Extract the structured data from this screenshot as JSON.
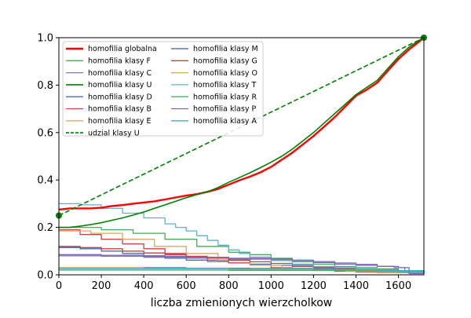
{
  "chart_data": {
    "type": "line",
    "title": "",
    "xlabel": "liczba zmienionych wierzcholkow",
    "ylabel": "",
    "xlim": [
      0,
      1720
    ],
    "ylim": [
      0.0,
      1.0
    ],
    "xticks": [
      "0",
      "200",
      "400",
      "600",
      "800",
      "1000",
      "1200",
      "1400",
      "1600"
    ],
    "yticks": [
      "0.0",
      "0.2",
      "0.4",
      "0.6",
      "0.8",
      "1.0"
    ],
    "grid": false,
    "legend_position": "top-left",
    "series": [
      {
        "name": "homofilia globalna",
        "color": "#ff0000",
        "style": "solid",
        "width": 2.4,
        "step": false,
        "points": [
          [
            0,
            0.275
          ],
          [
            50,
            0.28
          ],
          [
            100,
            0.28
          ],
          [
            150,
            0.28
          ],
          [
            200,
            0.283
          ],
          [
            250,
            0.29
          ],
          [
            300,
            0.294
          ],
          [
            350,
            0.3
          ],
          [
            400,
            0.305
          ],
          [
            450,
            0.31
          ],
          [
            500,
            0.318
          ],
          [
            550,
            0.326
          ],
          [
            600,
            0.334
          ],
          [
            650,
            0.34
          ],
          [
            700,
            0.35
          ],
          [
            750,
            0.362
          ],
          [
            800,
            0.38
          ],
          [
            850,
            0.398
          ],
          [
            900,
            0.414
          ],
          [
            950,
            0.432
          ],
          [
            1000,
            0.455
          ],
          [
            1050,
            0.485
          ],
          [
            1100,
            0.515
          ],
          [
            1150,
            0.55
          ],
          [
            1200,
            0.585
          ],
          [
            1250,
            0.625
          ],
          [
            1300,
            0.665
          ],
          [
            1350,
            0.71
          ],
          [
            1400,
            0.755
          ],
          [
            1450,
            0.78
          ],
          [
            1500,
            0.81
          ],
          [
            1550,
            0.86
          ],
          [
            1600,
            0.91
          ],
          [
            1650,
            0.95
          ],
          [
            1700,
            0.985
          ],
          [
            1720,
            1.0
          ]
        ]
      },
      {
        "name": "homofilia klasy F",
        "color": "#4aaa55",
        "style": "solid",
        "width": 1.3,
        "step": true,
        "points": [
          [
            0,
            0.2
          ],
          [
            100,
            0.2
          ],
          [
            200,
            0.19
          ],
          [
            350,
            0.175
          ],
          [
            500,
            0.15
          ],
          [
            650,
            0.12
          ],
          [
            800,
            0.095
          ],
          [
            900,
            0.085
          ],
          [
            1000,
            0.07
          ],
          [
            1100,
            0.055
          ],
          [
            1200,
            0.045
          ],
          [
            1300,
            0.035
          ],
          [
            1400,
            0.03
          ],
          [
            1500,
            0.025
          ],
          [
            1600,
            0.015
          ],
          [
            1720,
            0.01
          ]
        ]
      },
      {
        "name": "homofilia klasy C",
        "color": "#8477bd",
        "style": "solid",
        "width": 1.3,
        "step": true,
        "points": [
          [
            0,
            0.08
          ],
          [
            200,
            0.078
          ],
          [
            400,
            0.074
          ],
          [
            600,
            0.07
          ],
          [
            800,
            0.066
          ],
          [
            1000,
            0.062
          ],
          [
            1200,
            0.056
          ],
          [
            1300,
            0.05
          ],
          [
            1400,
            0.044
          ],
          [
            1500,
            0.036
          ],
          [
            1580,
            0.03
          ],
          [
            1630,
            0.01
          ],
          [
            1720,
            0.008
          ]
        ]
      },
      {
        "name": "homofilia klasy U",
        "color": "#008000",
        "style": "solid",
        "width": 1.6,
        "step": false,
        "points": [
          [
            0,
            0.2
          ],
          [
            50,
            0.2
          ],
          [
            100,
            0.205
          ],
          [
            150,
            0.212
          ],
          [
            200,
            0.22
          ],
          [
            250,
            0.23
          ],
          [
            300,
            0.24
          ],
          [
            350,
            0.252
          ],
          [
            400,
            0.265
          ],
          [
            450,
            0.28
          ],
          [
            500,
            0.295
          ],
          [
            550,
            0.31
          ],
          [
            600,
            0.325
          ],
          [
            650,
            0.338
          ],
          [
            700,
            0.35
          ],
          [
            750,
            0.368
          ],
          [
            800,
            0.39
          ],
          [
            850,
            0.41
          ],
          [
            900,
            0.43
          ],
          [
            950,
            0.452
          ],
          [
            1000,
            0.475
          ],
          [
            1050,
            0.5
          ],
          [
            1100,
            0.53
          ],
          [
            1150,
            0.565
          ],
          [
            1200,
            0.6
          ],
          [
            1250,
            0.64
          ],
          [
            1300,
            0.68
          ],
          [
            1350,
            0.72
          ],
          [
            1400,
            0.76
          ],
          [
            1450,
            0.79
          ],
          [
            1500,
            0.82
          ],
          [
            1550,
            0.87
          ],
          [
            1600,
            0.92
          ],
          [
            1650,
            0.96
          ],
          [
            1700,
            0.99
          ],
          [
            1720,
            1.0
          ]
        ]
      },
      {
        "name": "homofilia klasy D",
        "color": "#4a6fb0",
        "style": "solid",
        "width": 1.3,
        "step": true,
        "points": [
          [
            0,
            0.115
          ],
          [
            100,
            0.11
          ],
          [
            200,
            0.1
          ],
          [
            300,
            0.09
          ],
          [
            400,
            0.08
          ],
          [
            500,
            0.07
          ],
          [
            600,
            0.062
          ],
          [
            700,
            0.056
          ],
          [
            800,
            0.05
          ],
          [
            900,
            0.045
          ],
          [
            1000,
            0.04
          ],
          [
            1100,
            0.035
          ],
          [
            1200,
            0.03
          ],
          [
            1300,
            0.026
          ],
          [
            1400,
            0.022
          ],
          [
            1500,
            0.016
          ],
          [
            1600,
            0.012
          ],
          [
            1720,
            0.01
          ]
        ]
      },
      {
        "name": "homofilia klasy B",
        "color": "#cc4444",
        "style": "solid",
        "width": 1.3,
        "step": true,
        "points": [
          [
            0,
            0.19
          ],
          [
            100,
            0.17
          ],
          [
            200,
            0.15
          ],
          [
            300,
            0.13
          ],
          [
            400,
            0.11
          ],
          [
            500,
            0.09
          ],
          [
            600,
            0.075
          ],
          [
            700,
            0.062
          ],
          [
            800,
            0.05
          ],
          [
            900,
            0.04
          ],
          [
            1000,
            0.03
          ],
          [
            1100,
            0.025
          ],
          [
            1200,
            0.02
          ],
          [
            1300,
            0.015
          ],
          [
            1400,
            0.012
          ],
          [
            1500,
            0.01
          ],
          [
            1720,
            0.008
          ]
        ]
      },
      {
        "name": "homofilia klasy E",
        "color": "#d4aa66",
        "style": "solid",
        "width": 1.3,
        "step": true,
        "points": [
          [
            0,
            0.185
          ],
          [
            150,
            0.175
          ],
          [
            300,
            0.15
          ],
          [
            450,
            0.12
          ],
          [
            600,
            0.09
          ],
          [
            750,
            0.06
          ],
          [
            900,
            0.04
          ],
          [
            1050,
            0.028
          ],
          [
            1200,
            0.02
          ],
          [
            1350,
            0.015
          ],
          [
            1500,
            0.012
          ],
          [
            1720,
            0.01
          ]
        ]
      },
      {
        "name": "udzial klasy U",
        "color": "#008000",
        "style": "dashed",
        "width": 1.6,
        "step": false,
        "points": [
          [
            0,
            0.25
          ],
          [
            1720,
            1.0
          ]
        ]
      },
      {
        "name": "homofilia klasy M",
        "color": "#3a5fa8",
        "style": "solid",
        "width": 1.3,
        "step": true,
        "points": [
          [
            0,
            0.03
          ],
          [
            300,
            0.03
          ],
          [
            600,
            0.028
          ],
          [
            900,
            0.027
          ],
          [
            1200,
            0.025
          ],
          [
            1400,
            0.02
          ],
          [
            1600,
            0.015
          ],
          [
            1720,
            0.01
          ]
        ]
      },
      {
        "name": "homofilia klasy G",
        "color": "#c84040",
        "style": "solid",
        "width": 1.3,
        "step": true,
        "points": [
          [
            0,
            0.12
          ],
          [
            100,
            0.115
          ],
          [
            200,
            0.11
          ],
          [
            300,
            0.1
          ],
          [
            400,
            0.092
          ],
          [
            500,
            0.085
          ],
          [
            600,
            0.078
          ],
          [
            700,
            0.07
          ],
          [
            800,
            0.062
          ],
          [
            900,
            0.055
          ],
          [
            1000,
            0.048
          ],
          [
            1100,
            0.04
          ],
          [
            1200,
            0.033
          ],
          [
            1300,
            0.026
          ],
          [
            1400,
            0.02
          ],
          [
            1500,
            0.015
          ],
          [
            1720,
            0.01
          ]
        ]
      },
      {
        "name": "homofilia klasy O",
        "color": "#c9b060",
        "style": "solid",
        "width": 1.3,
        "step": true,
        "points": [
          [
            0,
            0.03
          ],
          [
            400,
            0.028
          ],
          [
            800,
            0.026
          ],
          [
            1200,
            0.022
          ],
          [
            1500,
            0.015
          ],
          [
            1720,
            0.01
          ]
        ]
      },
      {
        "name": "homofilia klasy T",
        "color": "#5ab4cc",
        "style": "solid",
        "width": 1.3,
        "step": true,
        "points": [
          [
            0,
            0.3
          ],
          [
            100,
            0.295
          ],
          [
            200,
            0.28
          ],
          [
            300,
            0.26
          ],
          [
            400,
            0.24
          ],
          [
            500,
            0.215
          ],
          [
            550,
            0.2
          ],
          [
            600,
            0.185
          ],
          [
            650,
            0.165
          ],
          [
            700,
            0.145
          ],
          [
            750,
            0.125
          ],
          [
            800,
            0.105
          ],
          [
            850,
            0.09
          ],
          [
            900,
            0.075
          ],
          [
            1000,
            0.06
          ],
          [
            1100,
            0.045
          ],
          [
            1200,
            0.035
          ],
          [
            1300,
            0.03
          ],
          [
            1400,
            0.025
          ],
          [
            1500,
            0.018
          ],
          [
            1600,
            0.012
          ],
          [
            1720,
            0.01
          ]
        ]
      },
      {
        "name": "homofilia klasy R",
        "color": "#55aa66",
        "style": "solid",
        "width": 1.3,
        "step": true,
        "points": [
          [
            0,
            0.02
          ],
          [
            400,
            0.02
          ],
          [
            800,
            0.019
          ],
          [
            1200,
            0.018
          ],
          [
            1500,
            0.015
          ],
          [
            1720,
            0.01
          ]
        ]
      },
      {
        "name": "homofilia klasy P",
        "color": "#7b66b8",
        "style": "solid",
        "width": 1.3,
        "step": true,
        "points": [
          [
            0,
            0.085
          ],
          [
            200,
            0.082
          ],
          [
            400,
            0.078
          ],
          [
            600,
            0.074
          ],
          [
            800,
            0.07
          ],
          [
            1000,
            0.066
          ],
          [
            1100,
            0.06
          ],
          [
            1200,
            0.052
          ],
          [
            1300,
            0.045
          ],
          [
            1400,
            0.04
          ],
          [
            1500,
            0.035
          ],
          [
            1600,
            0.03
          ],
          [
            1650,
            0.005
          ],
          [
            1720,
            0.005
          ]
        ]
      },
      {
        "name": "homofilia klasy A",
        "color": "#40b0c0",
        "style": "solid",
        "width": 1.3,
        "step": true,
        "points": [
          [
            0,
            0.025
          ],
          [
            400,
            0.025
          ],
          [
            800,
            0.024
          ],
          [
            1200,
            0.022
          ],
          [
            1500,
            0.018
          ],
          [
            1720,
            0.012
          ]
        ]
      }
    ],
    "markers": [
      {
        "x": 0,
        "y": 0.25,
        "color": "#008000"
      },
      {
        "x": 1720,
        "y": 1.0,
        "color": "#008000"
      }
    ]
  }
}
